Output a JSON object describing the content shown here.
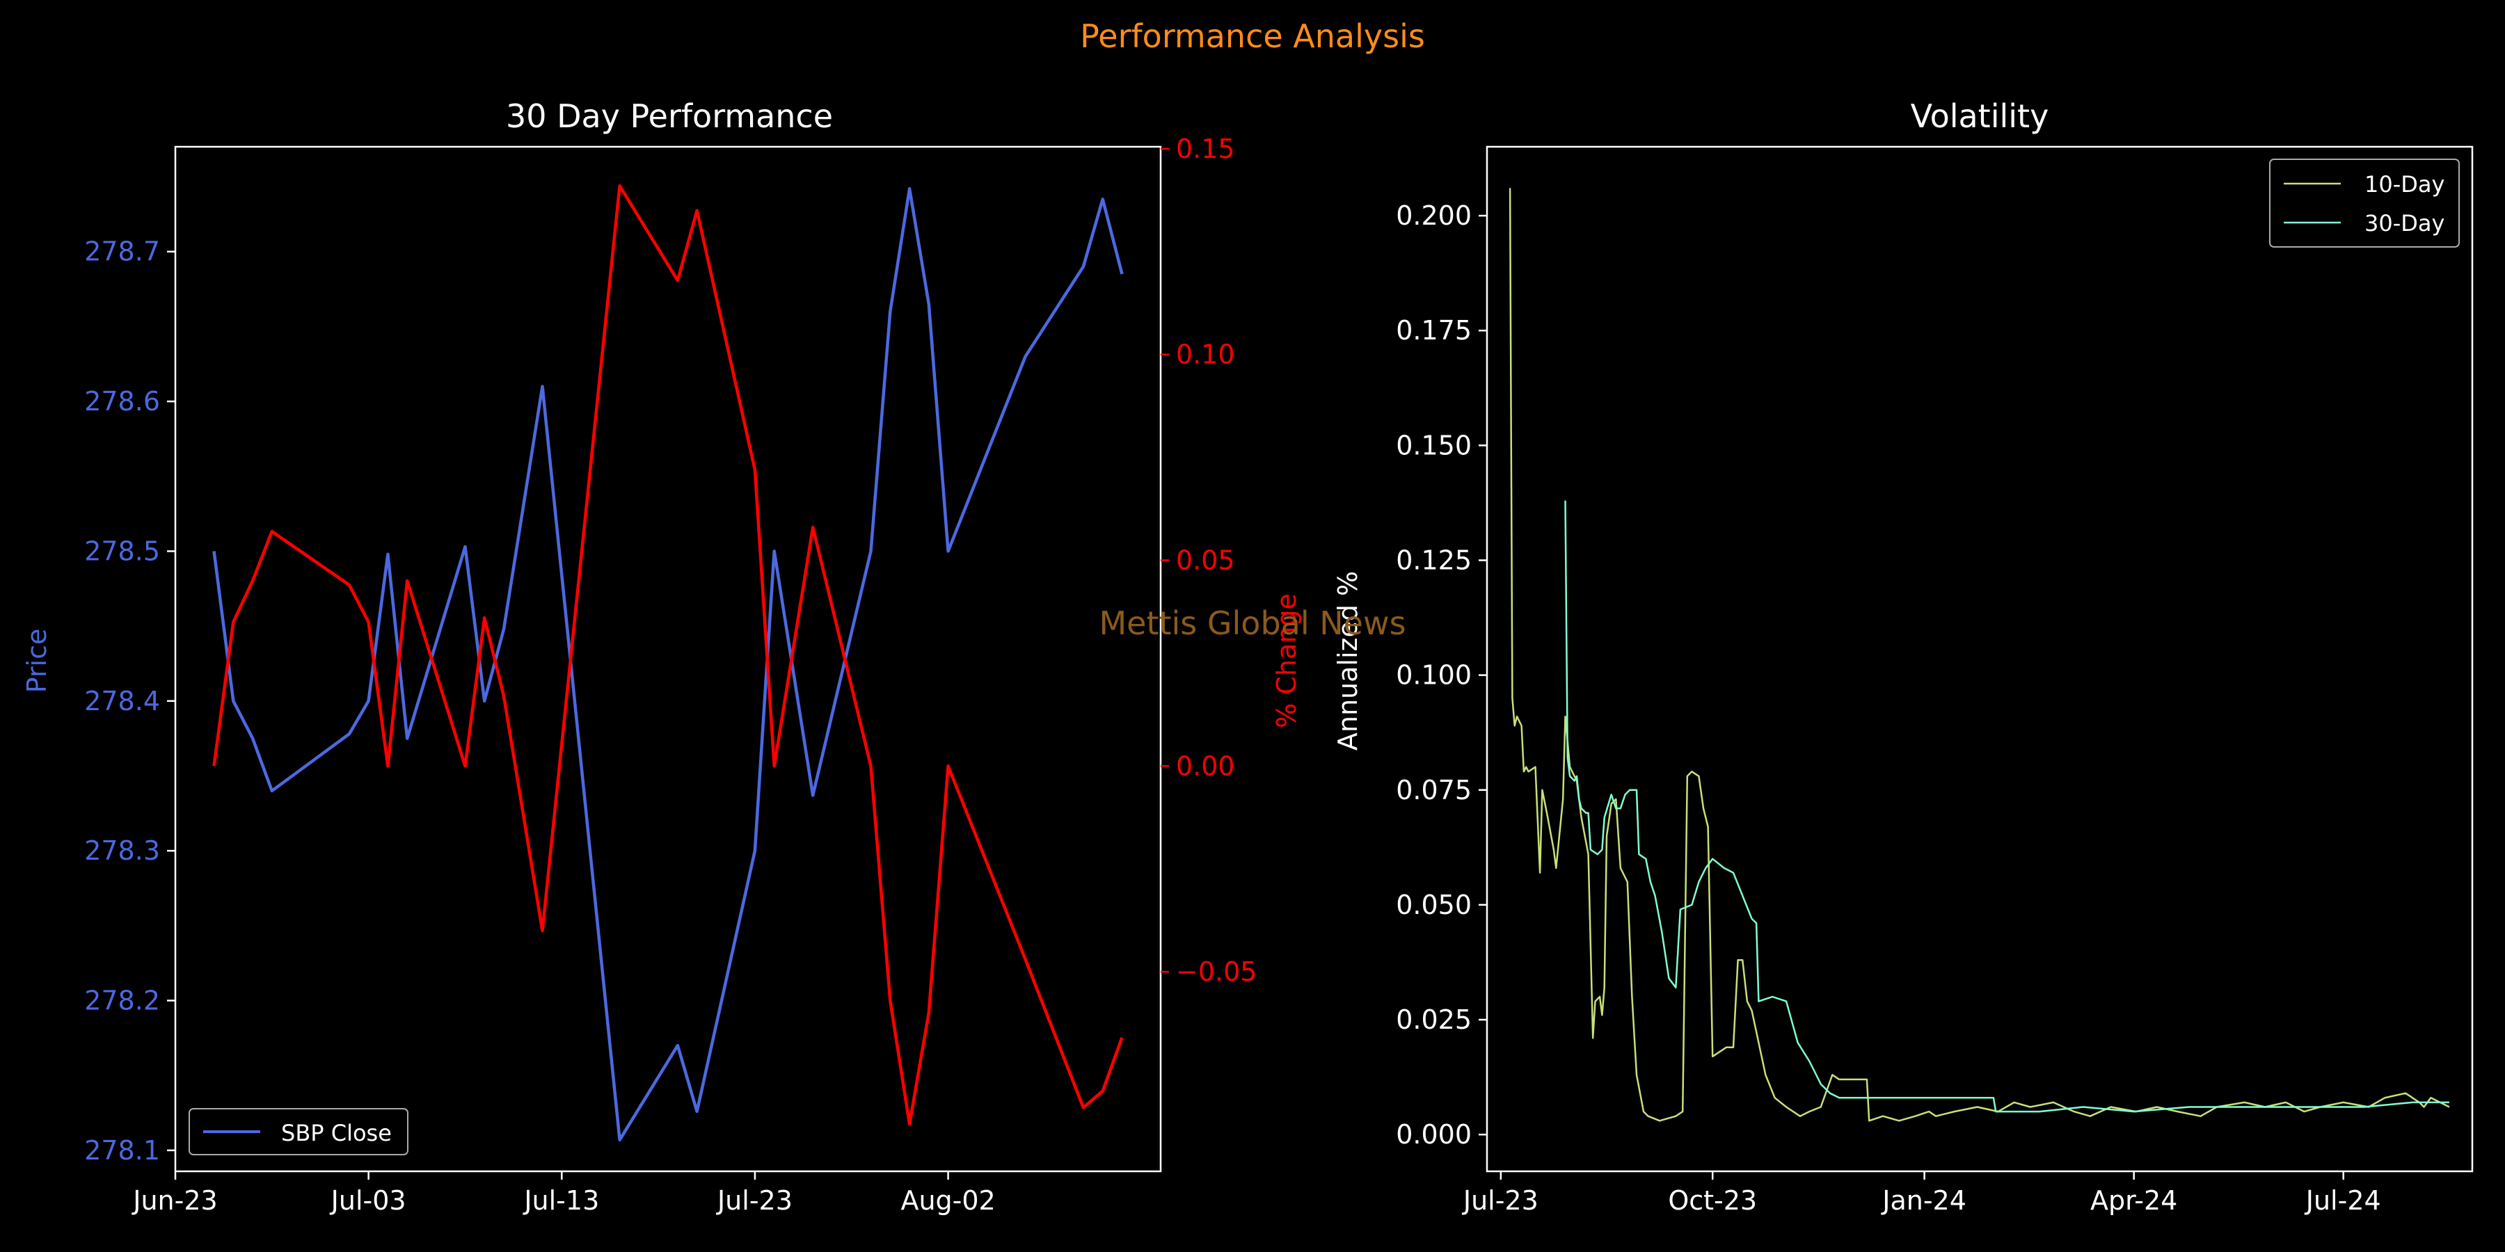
{
  "figure": {
    "suptitle": "Performance Analysis",
    "watermark": "Mettis Global News",
    "colors": {
      "background": "#000000",
      "suptitle": "#ff8c1a",
      "watermark": "#8b5a1e",
      "axes": "#ffffff"
    }
  },
  "chart_data": [
    {
      "type": "line",
      "title": "30 Day Performance",
      "ylabel": "Price",
      "ylabel_right": "% Change",
      "xlim": [
        "2023-06-23",
        "2023-08-13"
      ],
      "ylim": [
        278.086,
        278.77
      ],
      "ylim_right": [
        -0.0985,
        0.1505
      ],
      "x_ticks": [
        "Jun-23",
        "Jul-03",
        "Jul-13",
        "Jul-23",
        "Aug-02"
      ],
      "y_ticks": [
        "278.1",
        "278.2",
        "278.3",
        "278.4",
        "278.5",
        "278.6",
        "278.7"
      ],
      "y_ticks_right": [
        "−0.05",
        "0.00",
        "0.05",
        "0.10",
        "0.15"
      ],
      "legend": {
        "position": "bottom-left",
        "entries": [
          "SBP Close"
        ]
      },
      "x": [
        "2023-06-25",
        "2023-06-26",
        "2023-06-27",
        "2023-06-28",
        "2023-07-02",
        "2023-07-03",
        "2023-07-04",
        "2023-07-05",
        "2023-07-08",
        "2023-07-09",
        "2023-07-10",
        "2023-07-12",
        "2023-07-16",
        "2023-07-19",
        "2023-07-20",
        "2023-07-23",
        "2023-07-24",
        "2023-07-26",
        "2023-07-29",
        "2023-07-30",
        "2023-07-31",
        "2023-08-01",
        "2023-08-02",
        "2023-08-06",
        "2023-08-09",
        "2023-08-10",
        "2023-08-11"
      ],
      "series": [
        {
          "name": "SBP Close",
          "axis": "left",
          "color": "#4c69e0",
          "values": [
            278.5,
            278.4,
            278.375,
            278.34,
            278.378,
            278.4,
            278.498,
            278.375,
            278.503,
            278.4,
            278.448,
            278.61,
            278.107,
            278.17,
            278.126,
            278.3,
            278.5,
            278.337,
            278.5,
            278.66,
            278.742,
            278.665,
            278.5,
            278.63,
            278.69,
            278.735,
            278.685
          ]
        },
        {
          "name": "% Change",
          "axis": "right",
          "color": "#ff0000",
          "values": [
            0.0,
            0.035,
            0.045,
            0.057,
            0.044,
            0.035,
            0.0,
            0.045,
            0.0,
            0.036,
            0.017,
            -0.04,
            0.141,
            0.118,
            0.135,
            0.072,
            0.0,
            0.058,
            0.0,
            -0.057,
            -0.087,
            -0.06,
            0.0,
            -0.047,
            -0.083,
            -0.079,
            -0.066
          ]
        }
      ]
    },
    {
      "type": "line",
      "title": "Volatility",
      "ylabel": "Annualized %",
      "xlim": [
        "2023-06-25",
        "2024-08-26"
      ],
      "ylim": [
        -0.008,
        0.215
      ],
      "x_ticks": [
        "Jul-23",
        "Oct-23",
        "Jan-24",
        "Apr-24",
        "Jul-24"
      ],
      "y_ticks": [
        "0.000",
        "0.025",
        "0.050",
        "0.075",
        "0.100",
        "0.125",
        "0.150",
        "0.175",
        "0.200"
      ],
      "legend": {
        "position": "top-right",
        "entries": [
          "10-Day",
          "30-Day"
        ]
      },
      "series": [
        {
          "name": "10-Day",
          "color": "#c7e07a",
          "points": [
            [
              "2023-07-05",
              0.206
            ],
            [
              "2023-07-06",
              0.095
            ],
            [
              "2023-07-07",
              0.089
            ],
            [
              "2023-07-08",
              0.091
            ],
            [
              "2023-07-10",
              0.089
            ],
            [
              "2023-07-11",
              0.079
            ],
            [
              "2023-07-12",
              0.08
            ],
            [
              "2023-07-13",
              0.079
            ],
            [
              "2023-07-16",
              0.08
            ],
            [
              "2023-07-18",
              0.057
            ],
            [
              "2023-07-19",
              0.075
            ],
            [
              "2023-07-21",
              0.07
            ],
            [
              "2023-07-24",
              0.062
            ],
            [
              "2023-07-25",
              0.058
            ],
            [
              "2023-07-26",
              0.063
            ],
            [
              "2023-07-28",
              0.073
            ],
            [
              "2023-07-29",
              0.091
            ],
            [
              "2023-07-31",
              0.08
            ],
            [
              "2023-08-03",
              0.077
            ],
            [
              "2023-08-04",
              0.073
            ],
            [
              "2023-08-05",
              0.069
            ],
            [
              "2023-08-08",
              0.061
            ],
            [
              "2023-08-10",
              0.021
            ],
            [
              "2023-08-11",
              0.029
            ],
            [
              "2023-08-13",
              0.03
            ],
            [
              "2023-08-14",
              0.026
            ],
            [
              "2023-08-15",
              0.032
            ],
            [
              "2023-08-16",
              0.065
            ],
            [
              "2023-08-18",
              0.072
            ],
            [
              "2023-08-20",
              0.073
            ],
            [
              "2023-08-22",
              0.058
            ],
            [
              "2023-08-25",
              0.055
            ],
            [
              "2023-08-27",
              0.03
            ],
            [
              "2023-08-29",
              0.013
            ],
            [
              "2023-09-01",
              0.005
            ],
            [
              "2023-09-03",
              0.004
            ],
            [
              "2023-09-08",
              0.003
            ],
            [
              "2023-09-15",
              0.004
            ],
            [
              "2023-09-18",
              0.005
            ],
            [
              "2023-09-20",
              0.078
            ],
            [
              "2023-09-22",
              0.079
            ],
            [
              "2023-09-25",
              0.078
            ],
            [
              "2023-09-27",
              0.071
            ],
            [
              "2023-09-29",
              0.067
            ],
            [
              "2023-10-01",
              0.017
            ],
            [
              "2023-10-04",
              0.018
            ],
            [
              "2023-10-07",
              0.019
            ],
            [
              "2023-10-10",
              0.019
            ],
            [
              "2023-10-12",
              0.038
            ],
            [
              "2023-10-14",
              0.038
            ],
            [
              "2023-10-16",
              0.029
            ],
            [
              "2023-10-18",
              0.027
            ],
            [
              "2023-10-21",
              0.02
            ],
            [
              "2023-10-24",
              0.013
            ],
            [
              "2023-10-28",
              0.008
            ],
            [
              "2023-11-02",
              0.006
            ],
            [
              "2023-11-08",
              0.004
            ],
            [
              "2023-11-12",
              0.005
            ],
            [
              "2023-11-17",
              0.006
            ],
            [
              "2023-11-22",
              0.013
            ],
            [
              "2023-11-25",
              0.012
            ],
            [
              "2023-12-07",
              0.012
            ],
            [
              "2023-12-08",
              0.003
            ],
            [
              "2023-12-14",
              0.004
            ],
            [
              "2023-12-21",
              0.003
            ],
            [
              "2023-12-28",
              0.004
            ],
            [
              "2024-01-03",
              0.005
            ],
            [
              "2024-01-06",
              0.004
            ],
            [
              "2024-01-14",
              0.005
            ],
            [
              "2024-01-24",
              0.006
            ],
            [
              "2024-02-02",
              0.005
            ],
            [
              "2024-02-09",
              0.007
            ],
            [
              "2024-02-16",
              0.006
            ],
            [
              "2024-02-26",
              0.007
            ],
            [
              "2024-03-06",
              0.005
            ],
            [
              "2024-03-13",
              0.004
            ],
            [
              "2024-03-22",
              0.006
            ],
            [
              "2024-04-02",
              0.005
            ],
            [
              "2024-04-11",
              0.006
            ],
            [
              "2024-04-20",
              0.005
            ],
            [
              "2024-04-30",
              0.004
            ],
            [
              "2024-05-07",
              0.006
            ],
            [
              "2024-05-19",
              0.007
            ],
            [
              "2024-05-28",
              0.006
            ],
            [
              "2024-06-06",
              0.007
            ],
            [
              "2024-06-14",
              0.005
            ],
            [
              "2024-06-21",
              0.006
            ],
            [
              "2024-07-01",
              0.007
            ],
            [
              "2024-07-12",
              0.006
            ],
            [
              "2024-07-19",
              0.008
            ],
            [
              "2024-07-28",
              0.009
            ],
            [
              "2024-08-03",
              0.007
            ],
            [
              "2024-08-05",
              0.006
            ],
            [
              "2024-08-08",
              0.008
            ],
            [
              "2024-08-12",
              0.007
            ],
            [
              "2024-08-16",
              0.006
            ]
          ]
        },
        {
          "name": "30-Day",
          "color": "#7fffd4",
          "points": [
            [
              "2023-07-29",
              0.138
            ],
            [
              "2023-07-30",
              0.082
            ],
            [
              "2023-07-31",
              0.078
            ],
            [
              "2023-08-02",
              0.077
            ],
            [
              "2023-08-03",
              0.078
            ],
            [
              "2023-08-04",
              0.073
            ],
            [
              "2023-08-05",
              0.071
            ],
            [
              "2023-08-07",
              0.07
            ],
            [
              "2023-08-08",
              0.07
            ],
            [
              "2023-08-09",
              0.062
            ],
            [
              "2023-08-12",
              0.061
            ],
            [
              "2023-08-14",
              0.062
            ],
            [
              "2023-08-15",
              0.069
            ],
            [
              "2023-08-18",
              0.074
            ],
            [
              "2023-08-20",
              0.071
            ],
            [
              "2023-08-22",
              0.071
            ],
            [
              "2023-08-24",
              0.074
            ],
            [
              "2023-08-26",
              0.075
            ],
            [
              "2023-08-29",
              0.075
            ],
            [
              "2023-08-30",
              0.061
            ],
            [
              "2023-09-02",
              0.06
            ],
            [
              "2023-09-04",
              0.055
            ],
            [
              "2023-09-06",
              0.052
            ],
            [
              "2023-09-09",
              0.044
            ],
            [
              "2023-09-12",
              0.034
            ],
            [
              "2023-09-15",
              0.032
            ],
            [
              "2023-09-17",
              0.049
            ],
            [
              "2023-09-22",
              0.05
            ],
            [
              "2023-09-25",
              0.055
            ],
            [
              "2023-09-28",
              0.058
            ],
            [
              "2023-10-01",
              0.06
            ],
            [
              "2023-10-06",
              0.058
            ],
            [
              "2023-10-10",
              0.057
            ],
            [
              "2023-10-14",
              0.052
            ],
            [
              "2023-10-18",
              0.047
            ],
            [
              "2023-10-20",
              0.046
            ],
            [
              "2023-10-21",
              0.029
            ],
            [
              "2023-10-27",
              0.03
            ],
            [
              "2023-11-02",
              0.029
            ],
            [
              "2023-11-07",
              0.02
            ],
            [
              "2023-11-12",
              0.016
            ],
            [
              "2023-11-17",
              0.011
            ],
            [
              "2023-11-21",
              0.009
            ],
            [
              "2023-11-25",
              0.008
            ],
            [
              "2023-12-10",
              0.008
            ],
            [
              "2023-12-25",
              0.008
            ],
            [
              "2024-01-10",
              0.008
            ],
            [
              "2024-01-31",
              0.008
            ],
            [
              "2024-02-01",
              0.005
            ],
            [
              "2024-02-20",
              0.005
            ],
            [
              "2024-03-10",
              0.006
            ],
            [
              "2024-04-01",
              0.005
            ],
            [
              "2024-04-25",
              0.006
            ],
            [
              "2024-05-20",
              0.006
            ],
            [
              "2024-06-15",
              0.006
            ],
            [
              "2024-07-10",
              0.006
            ],
            [
              "2024-07-31",
              0.007
            ],
            [
              "2024-08-16",
              0.007
            ]
          ]
        }
      ]
    }
  ]
}
